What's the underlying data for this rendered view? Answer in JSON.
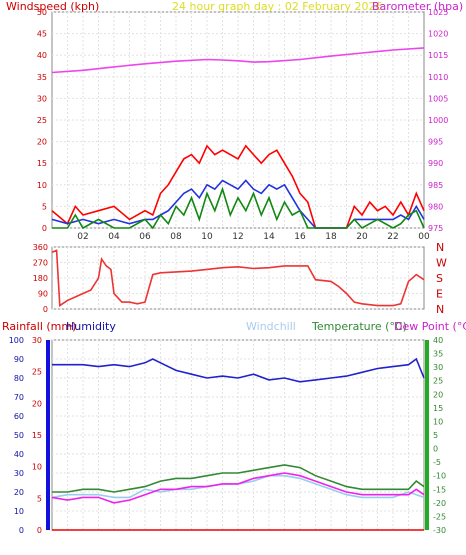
{
  "chart_data": [
    {
      "type": "line",
      "title": "24 hour graph day : 02 February 2026",
      "ylabel_left": "Windspeed (kph)",
      "ylabel_right": "Barometer (hpa)",
      "x_ticks": [
        "02",
        "04",
        "06",
        "08",
        "10",
        "12",
        "14",
        "16",
        "18",
        "20",
        "22",
        "00"
      ],
      "x_hours": [
        2,
        4,
        6,
        8,
        10,
        12,
        14,
        16,
        18,
        20,
        22,
        24
      ],
      "x_range": [
        0,
        24
      ],
      "ylim_left": [
        0,
        50
      ],
      "yticks_left": [
        "0",
        "5",
        "10",
        "15",
        "20",
        "25",
        "30",
        "35",
        "40",
        "45",
        "50"
      ],
      "ylim_right": [
        975,
        1025
      ],
      "yticks_right": [
        "975",
        "980",
        "985",
        "990",
        "995",
        "1000",
        "1005",
        "1010",
        "1015",
        "1020",
        "1025"
      ],
      "grid": true,
      "series": [
        {
          "axis": "right",
          "color": "#ee44ee",
          "x": [
            0,
            2,
            4,
            6,
            8,
            10,
            11,
            12,
            13,
            14,
            16,
            18,
            20,
            22,
            24
          ],
          "y": [
            1011,
            1011.5,
            1012.3,
            1013,
            1013.6,
            1014,
            1013.9,
            1013.7,
            1013.4,
            1013.5,
            1014,
            1014.8,
            1015.5,
            1016.2,
            1016.7
          ]
        },
        {
          "axis": "left",
          "color": "#ff0000",
          "x": [
            0,
            1,
            1.5,
            2,
            3,
            4,
            5,
            6,
            6.5,
            7,
            7.5,
            8,
            8.5,
            9,
            9.5,
            10,
            10.5,
            11,
            11.5,
            12,
            12.5,
            13,
            13.5,
            14,
            14.5,
            15,
            15.5,
            16,
            16.5,
            17,
            18,
            19,
            19.5,
            20,
            20.5,
            21,
            21.5,
            22,
            22.5,
            23,
            23.5,
            24
          ],
          "y": [
            4,
            1,
            5,
            3,
            4,
            5,
            2,
            4,
            3,
            8,
            10,
            13,
            16,
            17,
            15,
            19,
            17,
            18,
            17,
            16,
            19,
            17,
            15,
            17,
            18,
            15,
            12,
            8,
            6,
            0,
            0,
            0,
            5,
            3,
            6,
            4,
            5,
            3,
            6,
            3,
            8,
            4
          ]
        },
        {
          "axis": "left",
          "color": "#2233dd",
          "x": [
            0,
            1,
            2,
            3,
            4,
            5,
            6,
            6.5,
            7,
            7.5,
            8,
            8.5,
            9,
            9.5,
            10,
            10.5,
            11,
            11.5,
            12,
            12.5,
            13,
            13.5,
            14,
            14.5,
            15,
            15.5,
            16,
            16.5,
            17,
            18,
            19,
            19.5,
            20,
            21,
            22,
            22.5,
            23,
            23.5,
            24
          ],
          "y": [
            2,
            1,
            2,
            1,
            2,
            1,
            2,
            2,
            3,
            4,
            6,
            8,
            9,
            7,
            10,
            9,
            11,
            10,
            9,
            11,
            9,
            8,
            10,
            9,
            10,
            7,
            4,
            2,
            0,
            0,
            0,
            2,
            2,
            2,
            2,
            3,
            2,
            5,
            2
          ]
        },
        {
          "axis": "left",
          "color": "#118811",
          "x": [
            0,
            1,
            1.5,
            2,
            3,
            4,
            5,
            6,
            6.5,
            7,
            7.5,
            8,
            8.5,
            9,
            9.5,
            10,
            10.5,
            11,
            11.5,
            12,
            12.5,
            13,
            13.5,
            14,
            14.5,
            15,
            15.5,
            16,
            16.5,
            17,
            18,
            19,
            19.5,
            20,
            21,
            22,
            22.5,
            23,
            23.5,
            24
          ],
          "y": [
            0,
            0,
            3,
            0,
            2,
            0,
            0,
            2,
            0,
            3,
            1,
            5,
            3,
            7,
            2,
            8,
            4,
            9,
            3,
            7,
            4,
            8,
            3,
            7,
            2,
            6,
            3,
            4,
            0,
            0,
            0,
            0,
            2,
            0,
            2,
            0,
            1,
            3,
            4,
            0
          ]
        }
      ]
    },
    {
      "type": "line",
      "ylabel_right": [
        "N",
        "W",
        "S",
        "E",
        "N"
      ],
      "ylim": [
        0,
        360
      ],
      "yticks": [
        "0",
        "90",
        "180",
        "270",
        "360"
      ],
      "x_range": [
        0,
        24
      ],
      "grid": true,
      "series": [
        {
          "color": "#ee3333",
          "x": [
            0,
            0.3,
            0.5,
            1,
            2,
            2.5,
            3,
            3.2,
            3.5,
            3.8,
            4,
            4.3,
            4.5,
            5,
            5.5,
            6,
            6.5,
            7,
            9,
            10,
            11,
            12,
            13,
            14,
            15,
            16,
            16.5,
            17,
            18,
            18.5,
            19,
            19.5,
            20,
            21,
            22,
            22.5,
            23,
            23.5,
            24
          ],
          "y": [
            330,
            340,
            20,
            50,
            90,
            110,
            180,
            290,
            250,
            230,
            90,
            60,
            40,
            40,
            30,
            40,
            200,
            210,
            220,
            230,
            240,
            245,
            235,
            240,
            250,
            250,
            250,
            170,
            160,
            130,
            90,
            40,
            30,
            20,
            20,
            30,
            160,
            200,
            170
          ]
        }
      ]
    },
    {
      "type": "line",
      "ylabel_rainfall": "Rainfall (mm)",
      "ylabel_humidity": "Humidity",
      "ylabel_windchill": "Windchill",
      "ylabel_temperature": "Temperature (°C)",
      "ylabel_dewpoint": "Dew Point (°C)",
      "ylim_humidity": [
        0,
        100
      ],
      "yticks_humidity": [
        "0",
        "10",
        "20",
        "30",
        "40",
        "50",
        "60",
        "70",
        "80",
        "90",
        "100"
      ],
      "ylim_rain": [
        0,
        30
      ],
      "yticks_rain": [
        "0",
        "5",
        "10",
        "15",
        "20",
        "25",
        "30"
      ],
      "ylim_temp": [
        -30,
        40
      ],
      "yticks_temp": [
        "-30",
        "-25",
        "-20",
        "-15",
        "-10",
        "-5",
        "0",
        "5",
        "10",
        "15",
        "20",
        "25",
        "30",
        "35",
        "40"
      ],
      "x_range": [
        0,
        24
      ],
      "grid": true,
      "series": [
        {
          "name": "Humidity",
          "axis": "humidity",
          "color": "#2222cc",
          "x": [
            0,
            1,
            2,
            3,
            4,
            5,
            6,
            6.5,
            7,
            8,
            9,
            10,
            11,
            12,
            13,
            14,
            15,
            16,
            17,
            18,
            19,
            20,
            21,
            22,
            23,
            23.5,
            24
          ],
          "y": [
            87,
            87,
            87,
            86,
            87,
            86,
            88,
            90,
            88,
            84,
            82,
            80,
            81,
            80,
            82,
            79,
            80,
            78,
            79,
            80,
            81,
            83,
            85,
            86,
            87,
            90,
            80
          ]
        },
        {
          "name": "Windchill",
          "axis": "temp",
          "color": "#99ccee",
          "x": [
            0,
            1,
            2,
            3,
            4,
            5,
            6,
            7,
            8,
            9,
            10,
            11,
            12,
            13,
            14,
            15,
            16,
            17,
            18,
            19,
            20,
            21,
            22,
            23,
            24
          ],
          "y": [
            -18,
            -17,
            -17,
            -17,
            -18,
            -18,
            -15,
            -16,
            -15,
            -15,
            -14,
            -13,
            -13,
            -12,
            -10,
            -10,
            -11,
            -13,
            -15,
            -17,
            -18,
            -18,
            -18,
            -16,
            -18
          ]
        },
        {
          "name": "Temperature (°C)",
          "axis": "temp",
          "color": "#338833",
          "x": [
            0,
            1,
            2,
            3,
            4,
            5,
            6,
            7,
            8,
            9,
            10,
            11,
            12,
            13,
            14,
            15,
            16,
            17,
            18,
            19,
            20,
            21,
            22,
            23,
            23.5,
            24
          ],
          "y": [
            -16,
            -16,
            -15,
            -15,
            -16,
            -15,
            -14,
            -12,
            -11,
            -11,
            -10,
            -9,
            -9,
            -8,
            -7,
            -6,
            -7,
            -10,
            -12,
            -14,
            -15,
            -15,
            -15,
            -15,
            -12,
            -14
          ]
        },
        {
          "name": "Dew Point (°C)",
          "axis": "temp",
          "color": "#ee22ee",
          "x": [
            0,
            1,
            2,
            3,
            4,
            5,
            6,
            7,
            8,
            9,
            10,
            11,
            12,
            13,
            14,
            15,
            16,
            17,
            18,
            19,
            20,
            21,
            22,
            23,
            23.5,
            24
          ],
          "y": [
            -18,
            -19,
            -18,
            -18,
            -20,
            -19,
            -17,
            -15,
            -15,
            -14,
            -14,
            -13,
            -13,
            -11,
            -10,
            -9,
            -10,
            -12,
            -14,
            -16,
            -17,
            -17,
            -17,
            -17,
            -15,
            -17
          ]
        },
        {
          "name": "Rainfall (mm)",
          "axis": "rain",
          "color": "#ee0000",
          "x": [
            0,
            24
          ],
          "y": [
            0,
            0
          ]
        }
      ]
    }
  ]
}
